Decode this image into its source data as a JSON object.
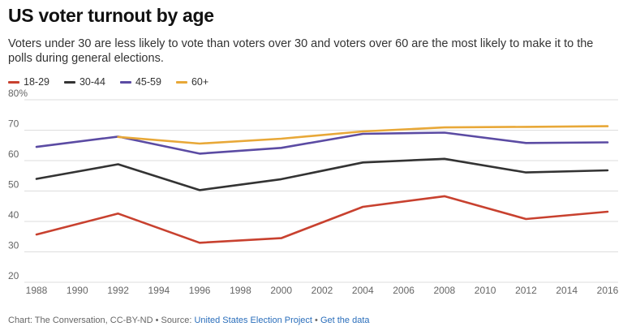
{
  "header": {
    "title": "US voter turnout by age",
    "subtitle": "Voters under 30 are less likely to vote than voters over 30 and voters over 60 are the most likely to make it to the polls during general elections."
  },
  "chart_data": {
    "type": "line",
    "title": "US voter turnout by age",
    "x": [
      1988,
      1992,
      1996,
      2000,
      2004,
      2008,
      2012,
      2016
    ],
    "x_ticks": [
      "1988",
      "1990",
      "1992",
      "1994",
      "1996",
      "1998",
      "2000",
      "2002",
      "2004",
      "2006",
      "2008",
      "2010",
      "2012",
      "2014",
      "2016"
    ],
    "y_ticks": [
      "80%",
      "70",
      "60",
      "50",
      "40",
      "30",
      "20"
    ],
    "ylim": [
      20,
      80
    ],
    "xlim": [
      1988,
      2016
    ],
    "grid": true,
    "legend_position": "top-left",
    "series": [
      {
        "name": "18-29",
        "color": "#c8412f",
        "values": [
          35.7,
          42.6,
          33.0,
          34.5,
          44.8,
          48.3,
          40.8,
          43.2
        ]
      },
      {
        "name": "30-44",
        "color": "#333333",
        "values": [
          54.0,
          58.8,
          50.3,
          53.9,
          59.4,
          60.6,
          56.1,
          56.8
        ]
      },
      {
        "name": "45-59",
        "color": "#5b4ba3",
        "values": [
          64.5,
          67.9,
          62.3,
          64.2,
          68.8,
          69.2,
          65.8,
          66.0
        ]
      },
      {
        "name": "60+",
        "color": "#e8a838",
        "values": [
          null,
          67.8,
          65.6,
          67.2,
          69.6,
          70.9,
          71.1,
          71.3
        ]
      }
    ]
  },
  "footer": {
    "prefix": "Chart: The Conversation, CC-BY-ND • Source: ",
    "source_link": "United States Election Project",
    "separator": " • ",
    "data_link": "Get the data"
  }
}
